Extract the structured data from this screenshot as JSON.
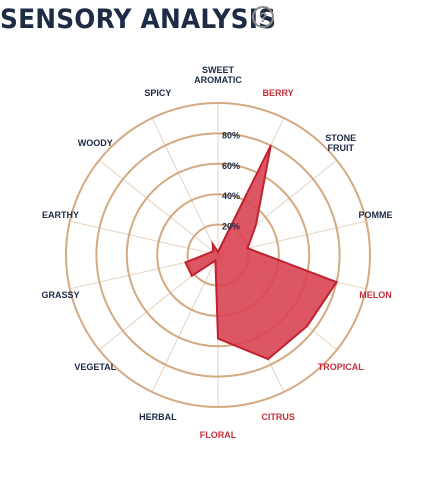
{
  "header": {
    "title": "SENSORY ANALYSIS",
    "help_glyph": "?"
  },
  "chart_data": {
    "type": "radar",
    "title": "SENSORY ANALYSIS",
    "categories": [
      {
        "label": [
          "SWEET",
          "AROMATIC"
        ],
        "color": "#1d2b45"
      },
      {
        "label": [
          "BERRY"
        ],
        "color": "#c52f3d"
      },
      {
        "label": [
          "STONE",
          "FRUIT"
        ],
        "color": "#1d2b45"
      },
      {
        "label": [
          "POMME"
        ],
        "color": "#1d2b45"
      },
      {
        "label": [
          "MELON"
        ],
        "color": "#c52f3d"
      },
      {
        "label": [
          "TROPICAL"
        ],
        "color": "#c52f3d"
      },
      {
        "label": [
          "CITRUS"
        ],
        "color": "#c52f3d"
      },
      {
        "label": [
          "FLORAL"
        ],
        "color": "#c52f3d"
      },
      {
        "label": [
          "HERBAL"
        ],
        "color": "#1d2b45"
      },
      {
        "label": [
          "VEGETAL"
        ],
        "color": "#1d2b45"
      },
      {
        "label": [
          "GRASSY"
        ],
        "color": "#1d2b45"
      },
      {
        "label": [
          "EARTHY"
        ],
        "color": "#1d2b45"
      },
      {
        "label": [
          "WOODY"
        ],
        "color": "#1d2b45"
      },
      {
        "label": [
          "SPICY"
        ],
        "color": "#1d2b45"
      }
    ],
    "values": [
      2,
      80,
      32,
      20,
      80,
      75,
      76,
      55,
      4,
      22,
      22,
      6,
      4,
      8
    ],
    "rlim": [
      0,
      100
    ],
    "ticks": [
      20,
      40,
      60,
      80
    ],
    "tick_labels": [
      "20%",
      "40%",
      "60%",
      "80%"
    ],
    "grid": true,
    "colors": {
      "fill": "#d94452",
      "stroke": "#c0222f",
      "grid": "#d4aa82",
      "spoke": "#e6d2bf"
    }
  }
}
